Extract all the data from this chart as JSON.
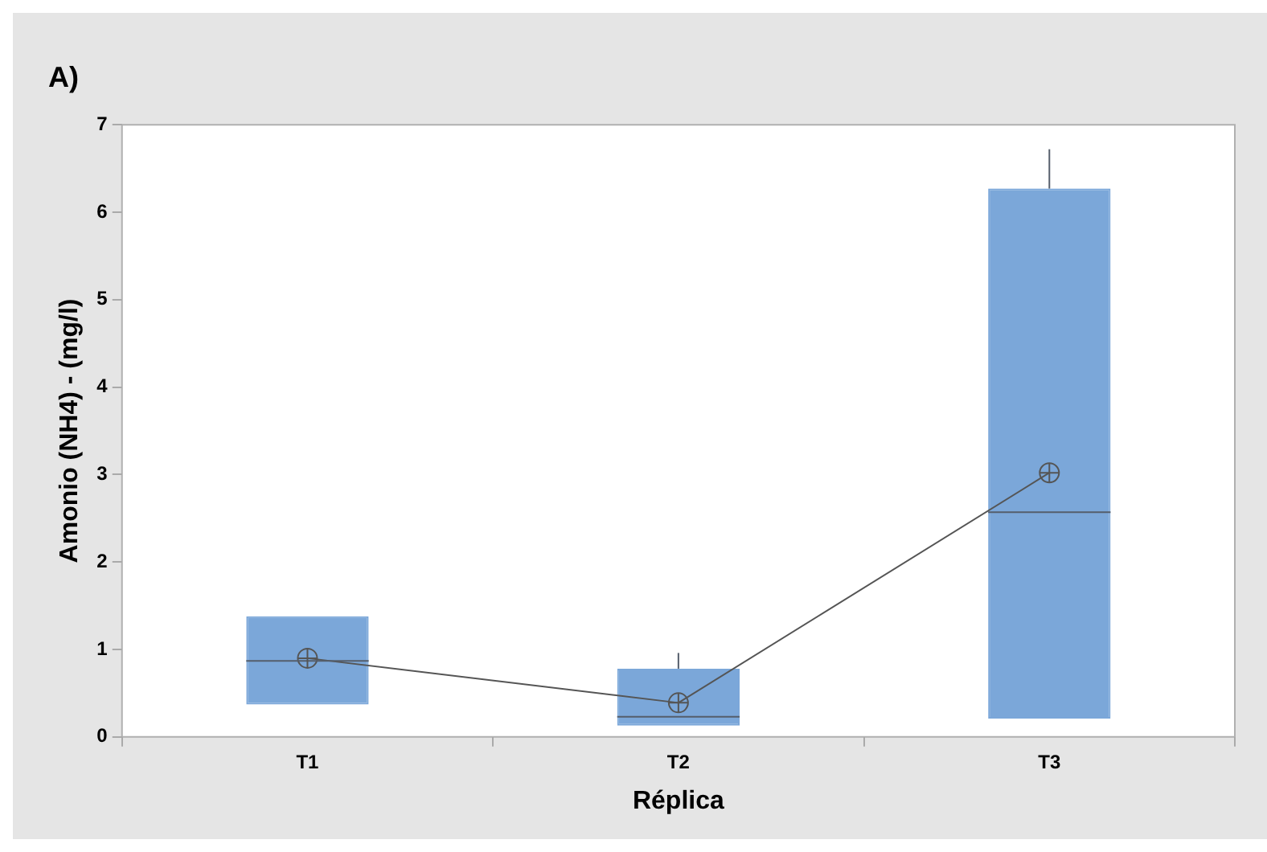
{
  "chart_data": {
    "type": "box",
    "title": "A)",
    "xlabel": "Réplica",
    "ylabel": "Amonio (NH4) - (mg/l)",
    "categories": [
      "T1",
      "T2",
      "T3"
    ],
    "series": [
      {
        "color": "#7ba7d9",
        "boxes": [
          {
            "low": 0.37,
            "q1": 0.37,
            "median": 0.87,
            "q3": 1.38,
            "high": 1.38
          },
          {
            "low": 0.13,
            "q1": 0.13,
            "median": 0.23,
            "q3": 0.78,
            "high": 0.96
          },
          {
            "low": 0.21,
            "q1": 0.21,
            "median": 2.57,
            "q3": 6.27,
            "high": 6.72
          }
        ]
      },
      {
        "type": "line",
        "color": "#555555",
        "values": [
          0.9,
          0.39,
          3.02
        ]
      }
    ],
    "marker": "circle",
    "ylim": [
      0,
      7
    ],
    "yticks": [
      0,
      1,
      2,
      3,
      4,
      5,
      6,
      7
    ],
    "grid": false
  }
}
